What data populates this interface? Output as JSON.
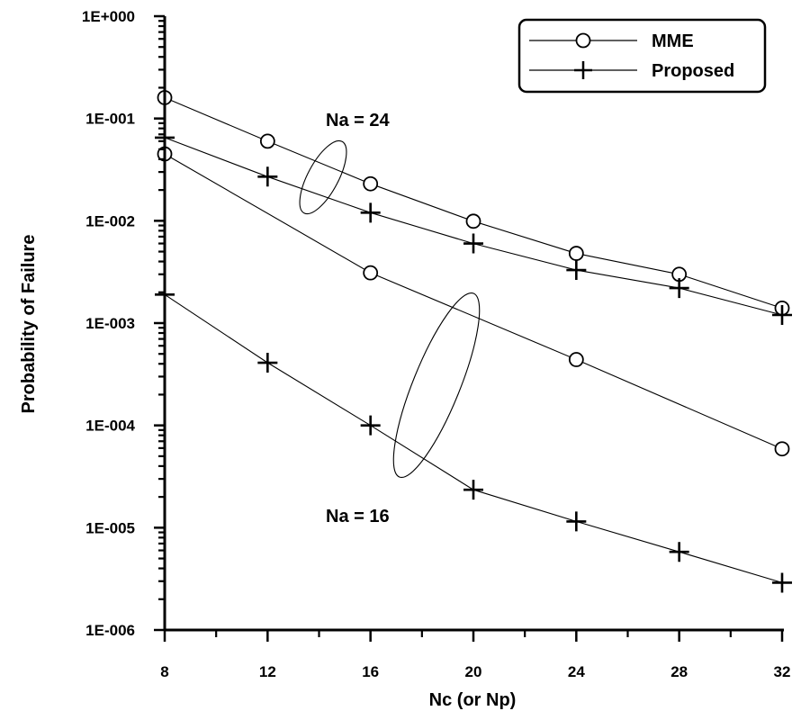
{
  "chart_data": {
    "type": "line",
    "title": "",
    "xlabel": "Nc (or Np)",
    "ylabel": "Probability of Failure",
    "x_ticks": [
      8,
      12,
      16,
      20,
      24,
      28,
      32
    ],
    "xlim": [
      8,
      32
    ],
    "y_scale": "log",
    "ylim": [
      1e-06,
      1
    ],
    "y_tick_labels": [
      "1E-006",
      "1E-005",
      "1E-004",
      "1E-003",
      "1E-002",
      "1E-001",
      "1E+000"
    ],
    "legend": {
      "position": "top-right",
      "entries": [
        {
          "label": "MME",
          "marker": "circle"
        },
        {
          "label": "Proposed",
          "marker": "plus"
        }
      ]
    },
    "annotations": [
      {
        "text": "Na = 24",
        "points_to": "upper curve pair (Na = 24)"
      },
      {
        "text": "Na = 16",
        "points_to": "lower curve pair (Na = 16)"
      }
    ],
    "series": [
      {
        "name": "MME, Na = 24",
        "legend": "MME",
        "marker": "circle",
        "x": [
          8,
          12,
          16,
          20,
          24,
          28,
          32
        ],
        "y": [
          0.16,
          0.06,
          0.023,
          0.0099,
          0.0048,
          0.003,
          0.0014
        ]
      },
      {
        "name": "Proposed, Na = 24",
        "legend": "Proposed",
        "marker": "plus",
        "x": [
          8,
          12,
          16,
          20,
          24,
          28,
          32
        ],
        "y": [
          0.065,
          0.027,
          0.012,
          0.006,
          0.0033,
          0.0022,
          0.0012
        ]
      },
      {
        "name": "MME, Na = 16",
        "legend": "MME",
        "marker": "circle",
        "x": [
          8,
          16,
          24,
          32
        ],
        "y": [
          0.045,
          0.0031,
          0.00044,
          5.9e-05
        ]
      },
      {
        "name": "Proposed, Na = 16",
        "legend": "Proposed",
        "marker": "plus",
        "x": [
          8,
          12,
          16,
          20,
          24,
          28,
          32
        ],
        "y": [
          0.0019,
          0.00041,
          0.0001,
          2.35e-05,
          1.15e-05,
          5.8e-06,
          2.9e-06
        ]
      }
    ]
  }
}
